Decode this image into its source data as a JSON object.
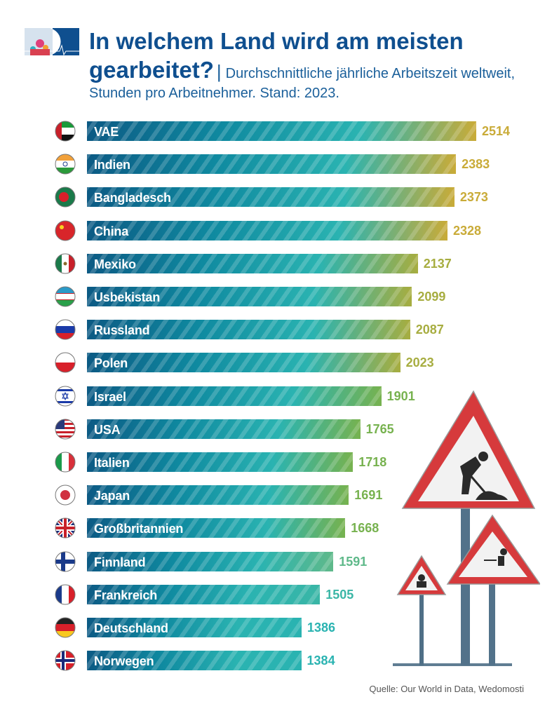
{
  "header": {
    "title": "In welchem Land wird am meisten gearbeitet?",
    "subtitle": "Durchschnittliche jährliche Arbeitszeit weltweit, Stunden pro Arbeitnehmer. Stand: 2023.",
    "separator": "|"
  },
  "source": "Quelle: Our World in Data, Wedomosti",
  "colors": {
    "dark_blue": "#0e5a85",
    "teal": "#2ab3b1",
    "gold": "#c9ab38",
    "green": "#77b24f",
    "title": "#0f4f8f"
  },
  "chart_data": {
    "type": "bar",
    "orientation": "horizontal",
    "title": "In welchem Land wird am meisten gearbeitet?",
    "subtitle": "Durchschnittliche jährliche Arbeitszeit weltweit, Stunden pro Arbeitnehmer. Stand: 2023.",
    "xlim": [
      0,
      2514
    ],
    "grid": false,
    "categories": [
      "VAE",
      "Indien",
      "Bangladesch",
      "China",
      "Mexiko",
      "Usbekistan",
      "Russland",
      "Polen",
      "Israel",
      "USA",
      "Italien",
      "Japan",
      "Großbritannien",
      "Finnland",
      "Frankreich",
      "Deutschland",
      "Norwegen"
    ],
    "values": [
      2514,
      2383,
      2373,
      2328,
      2137,
      2099,
      2087,
      2023,
      1901,
      1765,
      1718,
      1691,
      1668,
      1591,
      1505,
      1386,
      1384
    ],
    "flags": [
      "ae",
      "in",
      "bd",
      "cn",
      "mx",
      "uz",
      "ru",
      "pl",
      "il",
      "us",
      "it",
      "jp",
      "gb",
      "fi",
      "fr",
      "de",
      "no"
    ],
    "value_colors": [
      "#c9ab38",
      "#c9ab38",
      "#c9ab38",
      "#c9ab38",
      "#a7ad40",
      "#a7ad40",
      "#a7ad40",
      "#a7ad40",
      "#77b24f",
      "#77b24f",
      "#77b24f",
      "#77b24f",
      "#77b24f",
      "#5fb98a",
      "#3ab6a6",
      "#2ab3b1",
      "#2ab3b1"
    ]
  }
}
